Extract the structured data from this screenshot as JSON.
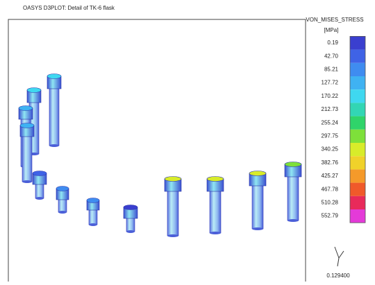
{
  "header": {
    "title": "OASYS D3PLOT: Detail of TK-6 flask"
  },
  "legend": {
    "title": "VON_MISES_STRESS",
    "unit": "[MPa]",
    "labels": [
      "0.19",
      "42.70",
      "85.21",
      "127.72",
      "170.22",
      "212.73",
      "255.24",
      "297.75",
      "340.25",
      "382.76",
      "425.27",
      "467.78",
      "510.28",
      "552.79"
    ]
  },
  "view": {
    "scale": "0.129400"
  }
}
